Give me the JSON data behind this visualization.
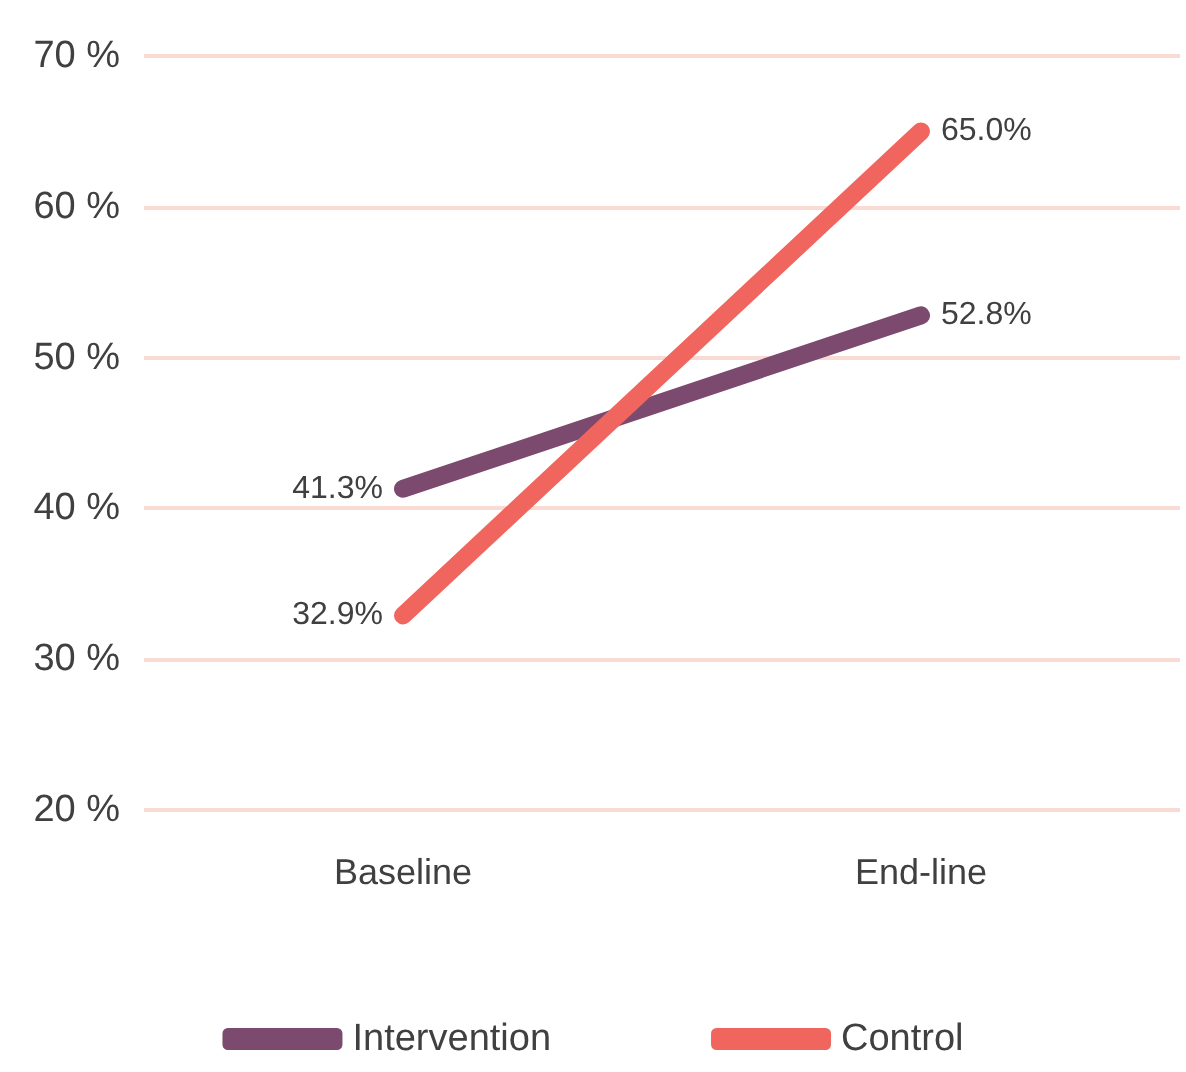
{
  "chart_data": {
    "type": "line",
    "categories": [
      "Baseline",
      "End-line"
    ],
    "series": [
      {
        "name": "Intervention",
        "color": "#7b4a6e",
        "values": [
          41.3,
          52.8
        ],
        "value_labels": [
          "41.3%",
          "52.8%"
        ]
      },
      {
        "name": "Control",
        "color": "#f0665e",
        "values": [
          32.9,
          65.0
        ],
        "value_labels": [
          "32.9%",
          "65.0%"
        ]
      }
    ],
    "ylim": [
      20,
      70
    ],
    "yticks": [
      {
        "value": 20,
        "label": "20 %"
      },
      {
        "value": 30,
        "label": "30 %"
      },
      {
        "value": 40,
        "label": "40 %"
      },
      {
        "value": 50,
        "label": "50 %"
      },
      {
        "value": 60,
        "label": "60 %"
      },
      {
        "value": 70,
        "label": "70 %"
      }
    ],
    "grid": "y",
    "legend": "bottom",
    "marker": "none",
    "line_style": "solid"
  }
}
